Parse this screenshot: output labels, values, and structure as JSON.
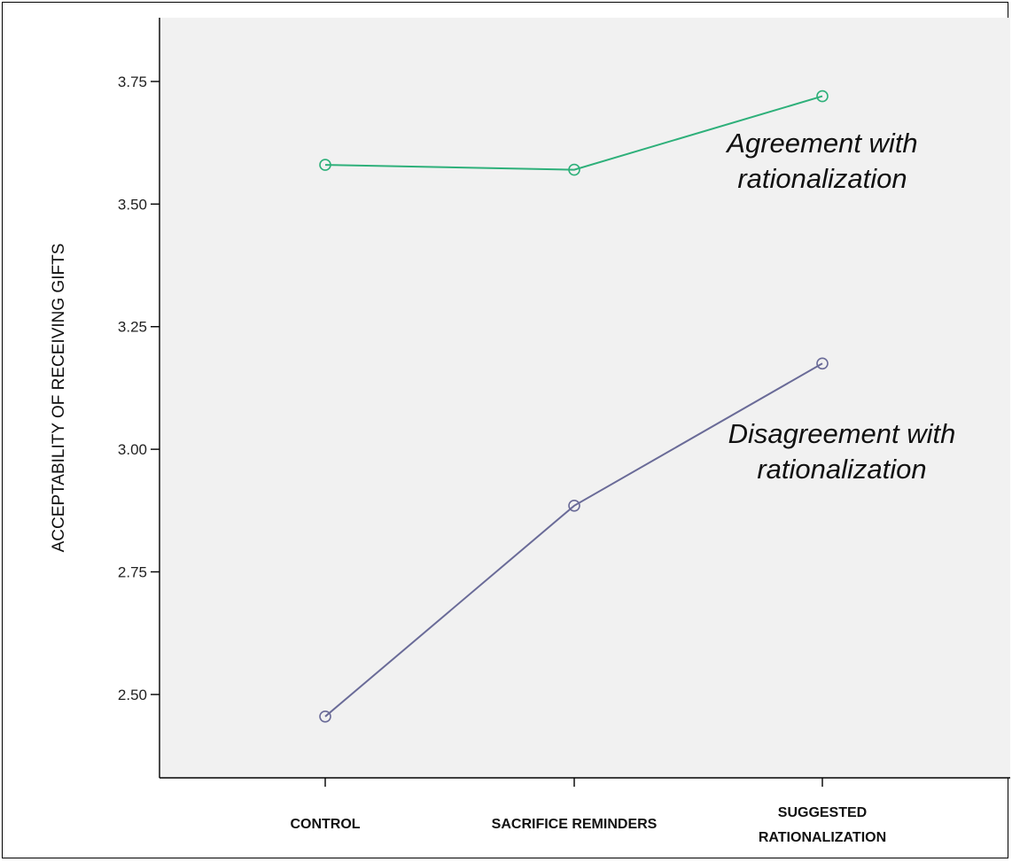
{
  "chart_data": {
    "type": "line",
    "title": "",
    "xlabel": "",
    "ylabel": "ACCEPTABILITY OF RECEIVING GIFTS",
    "categories": [
      [
        "CONTROL"
      ],
      [
        "SACRIFICE REMINDERS"
      ],
      [
        "SUGGESTED",
        "RATIONALIZATION"
      ]
    ],
    "ylim": [
      2.33,
      3.88
    ],
    "yticks": [
      "2.50",
      "2.75",
      "3.00",
      "3.25",
      "3.50",
      "3.75"
    ],
    "grid": false,
    "legend": "none",
    "series": [
      {
        "values": [
          3.58,
          3.57,
          3.72
        ],
        "color": "#2eb07a"
      },
      {
        "values": [
          2.455,
          2.885,
          3.175
        ],
        "color": "#6a6b98"
      }
    ],
    "annotations": [
      {
        "lines": [
          "Agreement with",
          "rationalization"
        ]
      },
      {
        "lines": [
          "Disagreement  with",
          "rationalization"
        ]
      }
    ],
    "colors": {
      "plot_background": "#f1f1f1",
      "axis": "#000000"
    }
  }
}
